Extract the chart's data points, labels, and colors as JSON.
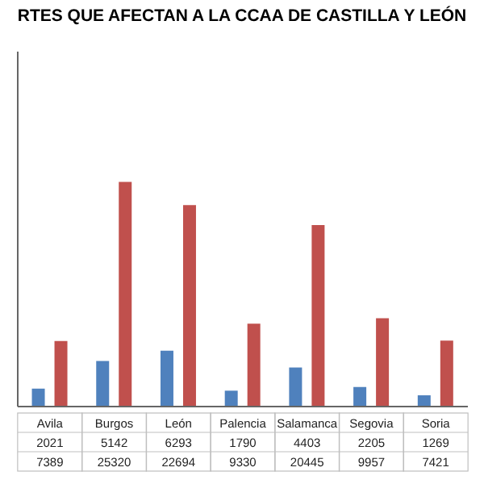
{
  "chart_data": {
    "type": "bar",
    "title": "RTES QUE AFECTAN A LA CCAA DE CASTILLA Y LEÓN",
    "categories": [
      "Avila",
      "Burgos",
      "León",
      "Palencia",
      "Salamanca",
      "Segovia",
      "Soria"
    ],
    "series": [
      {
        "color": "#4f81bd",
        "values": [
          2021,
          5142,
          6293,
          1790,
          4403,
          2205,
          1269
        ]
      },
      {
        "color": "#c0504d",
        "values": [
          7389,
          25320,
          22694,
          9330,
          20445,
          9957,
          7421
        ]
      }
    ],
    "ylim": [
      0,
      40000
    ],
    "tick_labels": "x",
    "data_labels": true
  }
}
